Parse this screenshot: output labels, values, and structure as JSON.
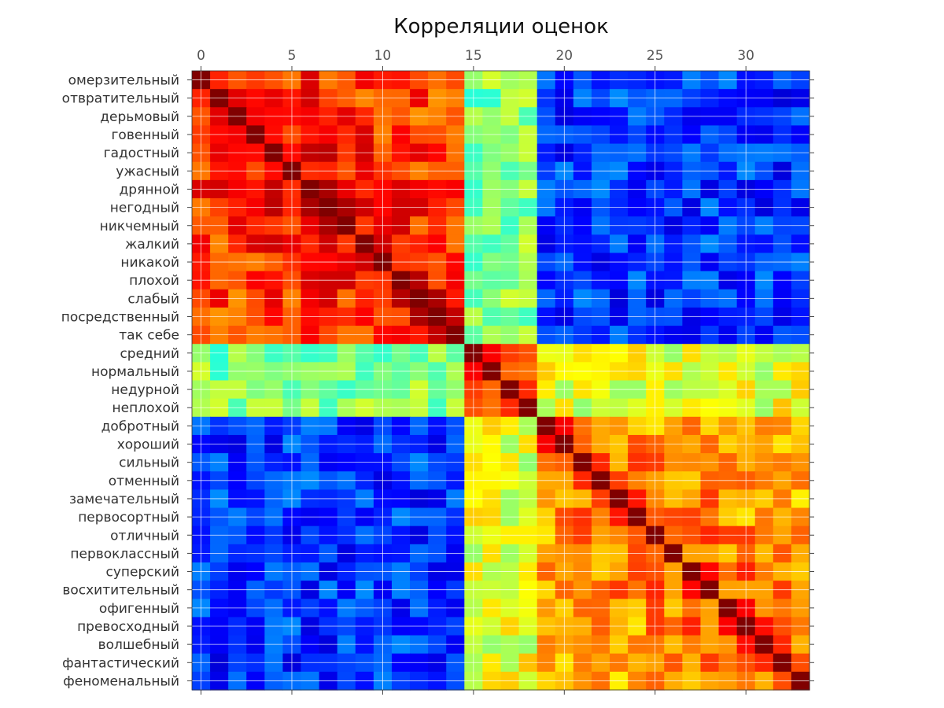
{
  "chart_data": {
    "type": "heatmap",
    "title": "Корреляции оценок",
    "x_axis": {
      "position": "top",
      "ticks": [
        0,
        5,
        10,
        15,
        20,
        25,
        30
      ],
      "range": [
        -0.5,
        33.5
      ]
    },
    "colormap": "jet",
    "value_range": [
      -1,
      1
    ],
    "grid": true,
    "labels": [
      "омерзительный",
      "отвратительный",
      "дерьмовый",
      "говенный",
      "гадостный",
      "ужасный",
      "дрянной",
      "негодный",
      "никчемный",
      "жалкий",
      "никакой",
      "плохой",
      "слабый",
      "посредственный",
      "так себе",
      "средний",
      "нормальный",
      "недурной",
      "неплохой",
      "добротный",
      "хороший",
      "сильный",
      "отменный",
      "замечательный",
      "первосортный",
      "отличный",
      "первоклассный",
      "суперский",
      "восхитительный",
      "офигенный",
      "превосходный",
      "волшебный",
      "фантастический",
      "феноменальный"
    ],
    "value_model": {
      "groups": [
        {
          "name": "negative",
          "members": [
            0,
            1,
            2,
            3,
            4,
            5,
            6,
            7,
            8,
            9,
            10,
            11,
            12,
            13,
            14
          ]
        },
        {
          "name": "neutral",
          "members": [
            15,
            16,
            17,
            18
          ]
        },
        {
          "name": "positive",
          "members": [
            19,
            20,
            21,
            22,
            23,
            24,
            25,
            26,
            27,
            28,
            29,
            30,
            31,
            32,
            33
          ]
        }
      ],
      "diagonal": 1.0,
      "within_negative": 0.6,
      "within_neutral": 0.45,
      "within_positive": 0.4,
      "negative_vs_neutral": 0.0,
      "neutral_vs_positive": 0.2,
      "negative_vs_positive": -0.65
    }
  }
}
